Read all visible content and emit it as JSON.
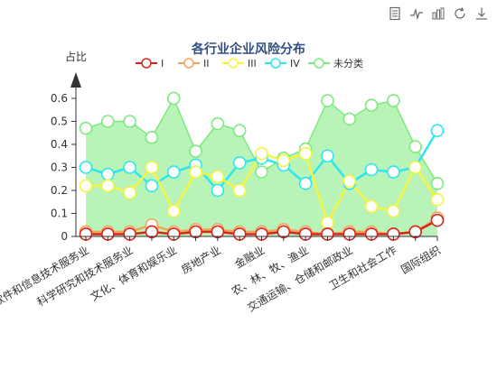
{
  "toolbox": {
    "items": [
      {
        "name": "data-view-icon"
      },
      {
        "name": "line-chart-icon"
      },
      {
        "name": "bar-chart-icon"
      },
      {
        "name": "restore-icon"
      },
      {
        "name": "save-image-icon"
      }
    ]
  },
  "chart_data": {
    "type": "area",
    "title": "各行业企业风险分布",
    "ylabel": "占比",
    "ylim": [
      0,
      0.6
    ],
    "yticks": [
      0,
      0.1,
      0.2,
      0.3,
      0.4,
      0.5,
      0.6
    ],
    "categories": [
      "信息传输、软件和信息技术服务业",
      "",
      "科学研究和技术服务业",
      "",
      "文化、体育和娱乐业",
      "",
      "房地产业",
      "",
      "金融业",
      "",
      "农、林、牧、渔业",
      "",
      "交通运输、仓储和邮政业",
      "",
      "卫生和社会工作",
      "",
      "国际组织"
    ],
    "legend_position": "top",
    "grid": false,
    "series": [
      {
        "name": "I",
        "color": "#d9261c",
        "values": [
          0.01,
          0.01,
          0.01,
          0.02,
          0.01,
          0.02,
          0.02,
          0.01,
          0.01,
          0.02,
          0.01,
          0.01,
          0.01,
          0.01,
          0.01,
          0.02,
          0.07
        ]
      },
      {
        "name": "II",
        "color": "#f5a25d",
        "values": [
          0.02,
          0.02,
          0.02,
          0.05,
          0.02,
          0.03,
          0.03,
          0.02,
          0.02,
          0.03,
          0.02,
          0.01,
          0.02,
          0.02,
          0.01,
          0.02,
          0.08
        ]
      },
      {
        "name": "III",
        "color": "#f5f542",
        "values": [
          0.22,
          0.22,
          0.19,
          0.3,
          0.11,
          0.28,
          0.26,
          0.2,
          0.36,
          0.33,
          0.36,
          0.06,
          0.24,
          0.13,
          0.11,
          0.3,
          0.16
        ]
      },
      {
        "name": "IV",
        "color": "#2ee6f0",
        "values": [
          0.3,
          0.27,
          0.3,
          0.22,
          0.28,
          0.31,
          0.2,
          0.32,
          0.34,
          0.31,
          0.23,
          0.35,
          0.23,
          0.29,
          0.28,
          0.3,
          0.46
        ]
      },
      {
        "name": "未分类",
        "color": "#7dea7d",
        "values": [
          0.47,
          0.5,
          0.5,
          0.43,
          0.6,
          0.37,
          0.49,
          0.46,
          0.28,
          0.34,
          0.38,
          0.59,
          0.51,
          0.57,
          0.59,
          0.39,
          0.23
        ]
      }
    ]
  }
}
